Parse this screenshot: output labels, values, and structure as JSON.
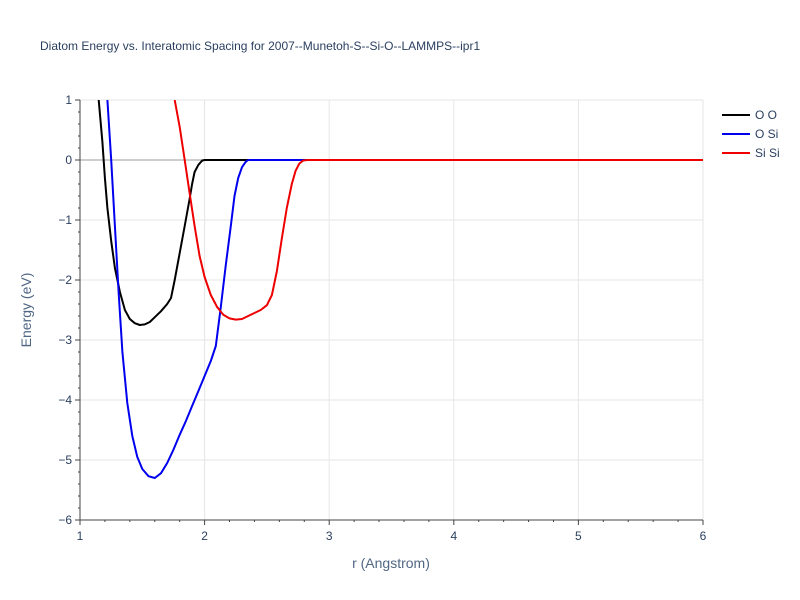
{
  "chart_data": {
    "type": "line",
    "title": "Diatom Energy vs. Interatomic Spacing for 2007--Munetoh-S--Si-O--LAMMPS--ipr1",
    "xlabel": "r (Angstrom)",
    "ylabel": "Energy (eV)",
    "xlim": [
      1,
      6
    ],
    "ylim": [
      -6,
      1
    ],
    "x_ticks": [
      1,
      2,
      3,
      4,
      5,
      6
    ],
    "y_ticks": [
      1,
      0,
      -1,
      -2,
      -3,
      -4,
      -5,
      -6
    ],
    "x_tick_labels": [
      "1",
      "2",
      "3",
      "4",
      "5",
      "6"
    ],
    "y_tick_labels": [
      "1",
      "0",
      "−1",
      "−2",
      "−3",
      "−4",
      "−5",
      "−6"
    ],
    "grid": true,
    "legend_position": "top-right",
    "series": [
      {
        "name": "O O",
        "color": "#000000",
        "x": [
          1.15,
          1.18,
          1.2,
          1.22,
          1.25,
          1.28,
          1.32,
          1.36,
          1.4,
          1.44,
          1.48,
          1.52,
          1.56,
          1.6,
          1.65,
          1.7,
          1.73,
          1.76,
          1.8,
          1.84,
          1.88,
          1.9,
          1.92,
          1.95,
          1.98,
          2.0,
          2.05,
          2.2,
          3.0,
          6.0
        ],
        "y": [
          1.0,
          0.3,
          -0.3,
          -0.8,
          -1.35,
          -1.8,
          -2.2,
          -2.5,
          -2.65,
          -2.72,
          -2.75,
          -2.74,
          -2.7,
          -2.62,
          -2.52,
          -2.4,
          -2.3,
          -2.0,
          -1.55,
          -1.1,
          -0.65,
          -0.4,
          -0.2,
          -0.08,
          -0.01,
          0.0,
          0.0,
          0.0,
          0.0,
          0.0
        ]
      },
      {
        "name": "O Si",
        "color": "#0000ee",
        "x": [
          1.22,
          1.25,
          1.28,
          1.31,
          1.34,
          1.38,
          1.42,
          1.46,
          1.5,
          1.55,
          1.6,
          1.65,
          1.7,
          1.75,
          1.8,
          1.85,
          1.9,
          1.95,
          2.0,
          2.05,
          2.09,
          2.13,
          2.17,
          2.21,
          2.24,
          2.27,
          2.3,
          2.33,
          2.35,
          2.37,
          2.4,
          3.0,
          6.0
        ],
        "y": [
          1.0,
          0.0,
          -1.1,
          -2.2,
          -3.2,
          -4.05,
          -4.6,
          -4.95,
          -5.15,
          -5.27,
          -5.3,
          -5.22,
          -5.05,
          -4.83,
          -4.58,
          -4.35,
          -4.1,
          -3.85,
          -3.6,
          -3.35,
          -3.1,
          -2.45,
          -1.75,
          -1.1,
          -0.6,
          -0.3,
          -0.12,
          -0.03,
          0.0,
          0.0,
          0.0,
          0.0,
          0.0
        ]
      },
      {
        "name": "Si Si",
        "color": "#ee0000",
        "x": [
          1.76,
          1.8,
          1.84,
          1.88,
          1.92,
          1.96,
          2.0,
          2.05,
          2.1,
          2.15,
          2.2,
          2.25,
          2.3,
          2.35,
          2.4,
          2.45,
          2.5,
          2.54,
          2.58,
          2.62,
          2.66,
          2.7,
          2.73,
          2.76,
          2.79,
          2.82,
          3.0,
          6.0
        ],
        "y": [
          1.0,
          0.55,
          0.0,
          -0.55,
          -1.1,
          -1.6,
          -1.95,
          -2.25,
          -2.45,
          -2.58,
          -2.64,
          -2.66,
          -2.65,
          -2.6,
          -2.55,
          -2.5,
          -2.42,
          -2.25,
          -1.85,
          -1.3,
          -0.8,
          -0.4,
          -0.18,
          -0.06,
          -0.01,
          0.0,
          0.0,
          0.0
        ]
      }
    ]
  }
}
